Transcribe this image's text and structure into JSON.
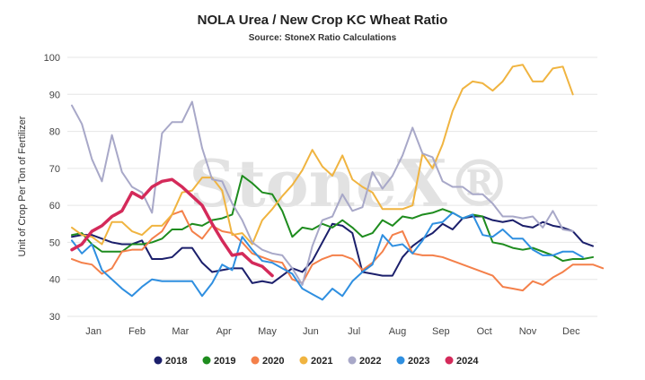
{
  "chart_data": {
    "type": "line",
    "title": "NOLA Urea / New Crop KC Wheat Ratio",
    "subtitle": "Source: StoneX Ratio Calculations",
    "watermark": "StoneX®",
    "xlabel": "",
    "ylabel": "Unit of Crop Per Ton of Fertilizer",
    "ylim": [
      30,
      100
    ],
    "y_ticks": [
      30,
      40,
      50,
      60,
      70,
      80,
      90,
      100
    ],
    "x_range": [
      0,
      52
    ],
    "month_ticks": [
      "Jan",
      "Feb",
      "Mar",
      "Apr",
      "May",
      "Jun",
      "Jul",
      "Aug",
      "Sep",
      "Oct",
      "Nov",
      "Dec"
    ],
    "grid": "horizontal",
    "legend_position": "bottom",
    "series": [
      {
        "name": "2018",
        "color": "#1b1f6b",
        "values": [
          51.5,
          52,
          52,
          51,
          50,
          49.5,
          49.5,
          50.5,
          45.5,
          45.5,
          46,
          48.5,
          48.5,
          44.5,
          42,
          42.5,
          43,
          43,
          39,
          39.5,
          39,
          41,
          43,
          42,
          45,
          50,
          55,
          54.5,
          52.5,
          42,
          41.5,
          41,
          41,
          46,
          49,
          51,
          52.5,
          55,
          53.5,
          56.5,
          57,
          57,
          56,
          55.5,
          56,
          54.5,
          54,
          55.5,
          54.5,
          54,
          53,
          50,
          49
        ]
      },
      {
        "name": "2019",
        "color": "#1e8c1e",
        "values": [
          52,
          52.5,
          49.5,
          47.5,
          47.5,
          47.5,
          49.5,
          49.5,
          50,
          51,
          53.5,
          53.5,
          55,
          54.5,
          56,
          56.5,
          57.5,
          68,
          66,
          63.5,
          63,
          58.5,
          51.5,
          54,
          53.5,
          55,
          54,
          56,
          54,
          51.5,
          52.5,
          56,
          54.5,
          57,
          56.5,
          57.5,
          58,
          59,
          58,
          56.5,
          57.5,
          57,
          50,
          49.5,
          48.5,
          48,
          48.5,
          47.5,
          46.5,
          45,
          45.5,
          45.5,
          46
        ]
      },
      {
        "name": "2020",
        "color": "#f4804a",
        "values": [
          45.5,
          44.5,
          44,
          41.5,
          43,
          47.5,
          48,
          48,
          51,
          53,
          57.5,
          58.5,
          53,
          51,
          54.5,
          53,
          52.5,
          50,
          47,
          46,
          45,
          44.5,
          40,
          39,
          44,
          45.5,
          46.5,
          46.5,
          45.5,
          42.5,
          44.5,
          47.5,
          52,
          53,
          47,
          46.5,
          46.5,
          46,
          45,
          44,
          43,
          42,
          41,
          38,
          37.5,
          37,
          39.5,
          38.5,
          40.5,
          42,
          44,
          44,
          44,
          43
        ]
      },
      {
        "name": "2021",
        "color": "#f0b440",
        "values": [
          54,
          52,
          51.5,
          49.5,
          55.5,
          55.5,
          53,
          52,
          54.5,
          54.5,
          57.5,
          63.5,
          64,
          67.5,
          67.5,
          64,
          52,
          52.5,
          49.5,
          56,
          59,
          62.5,
          65.5,
          69.5,
          75,
          70.5,
          68,
          73.5,
          67,
          65,
          63.5,
          59,
          59,
          59,
          60,
          74,
          70,
          76.5,
          85.5,
          91.5,
          93.5,
          93,
          91,
          93.5,
          97.5,
          98,
          93.5,
          93.5,
          97,
          97.5,
          90
        ]
      },
      {
        "name": "2022",
        "color": "#a8a8c8",
        "values": [
          87,
          82,
          72.5,
          66.5,
          79,
          69,
          65,
          63.5,
          58,
          79.5,
          82.5,
          82.5,
          88,
          75.5,
          67,
          66.5,
          60.5,
          56,
          50,
          48,
          47,
          46.5,
          43,
          38.5,
          49,
          56,
          57,
          63,
          58.5,
          59.5,
          69,
          64.5,
          68,
          73.5,
          81,
          74,
          73,
          66.5,
          65,
          65,
          63,
          63,
          60.5,
          57,
          57,
          56.5,
          57,
          54,
          58.5,
          53.5,
          53
        ]
      },
      {
        "name": "2023",
        "color": "#2f8fe0",
        "values": [
          50.5,
          47,
          49.5,
          42.5,
          40,
          37.5,
          35.5,
          38,
          40,
          39.5,
          39.5,
          39.5,
          39.5,
          35.5,
          39,
          44,
          42.5,
          51.5,
          48,
          45,
          44.5,
          43,
          41.5,
          37.5,
          36,
          34.5,
          37.5,
          35.5,
          39.5,
          42,
          44,
          52,
          49,
          49.5,
          47,
          50.5,
          55,
          55.5,
          58,
          56.5,
          57.5,
          52,
          51.5,
          53.5,
          51,
          51,
          48,
          46.5,
          46.5,
          47.5,
          47.5,
          46
        ]
      },
      {
        "name": "2024",
        "color": "#d42a5a",
        "values": [
          48,
          49.5,
          53,
          54.5,
          57,
          58.5,
          63.5,
          62,
          65,
          66.5,
          67,
          65,
          62.5,
          60,
          55,
          50.5,
          46.5,
          47,
          44.5,
          43.5,
          41
        ]
      }
    ]
  }
}
